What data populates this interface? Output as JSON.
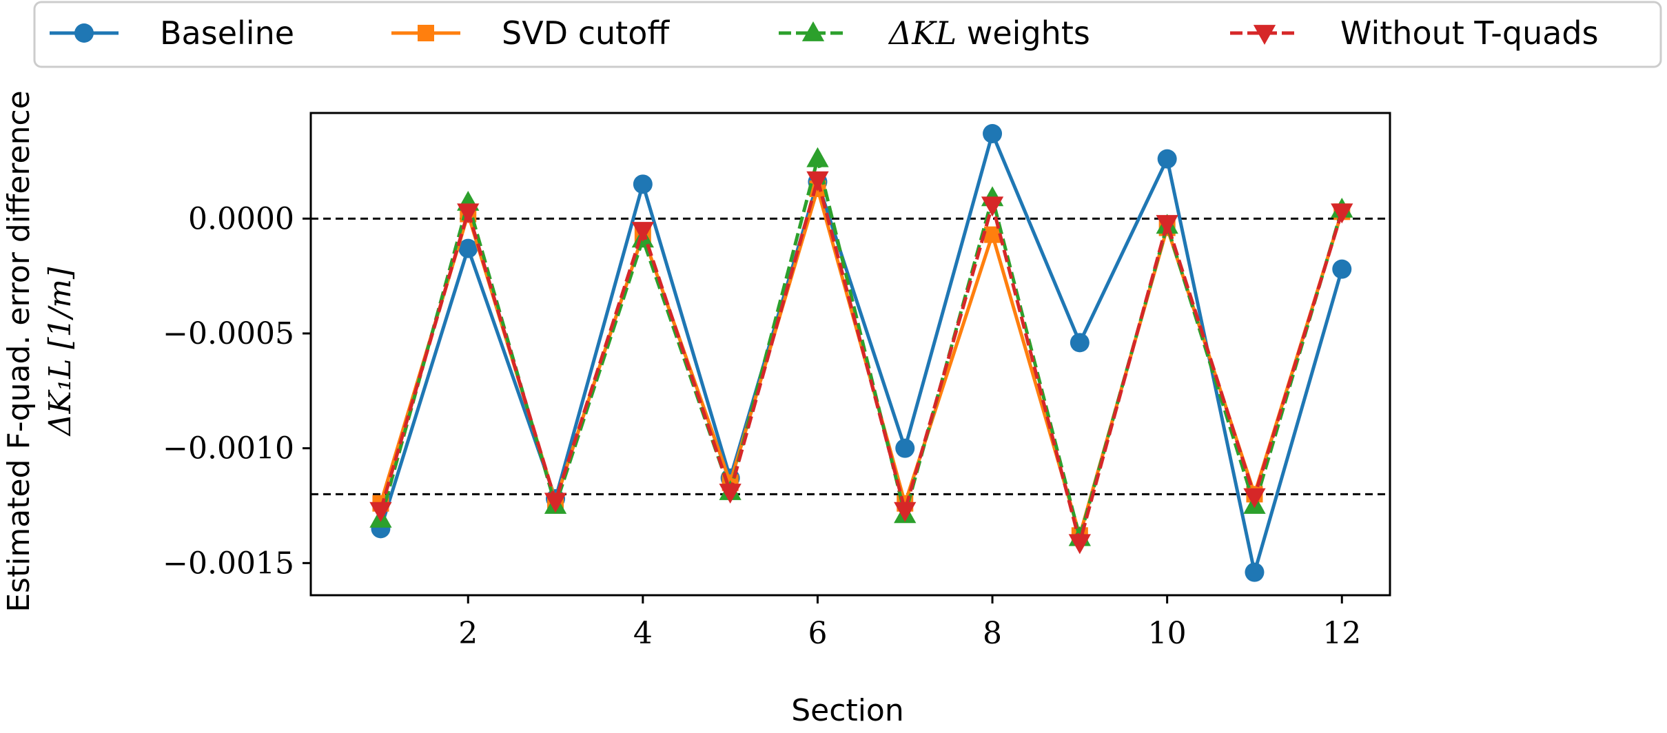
{
  "chart_data": {
    "type": "line",
    "xlabel": "Section",
    "ylabel_line1": "Estimated F-quad. error difference",
    "ylabel_line2": "ΔK₁L [1/m]",
    "xlim": [
      0.2,
      12.55
    ],
    "ylim": [
      -0.00164,
      0.00046
    ],
    "x_ticks": [
      2,
      4,
      6,
      8,
      10,
      12
    ],
    "x_tick_labels": [
      "2",
      "4",
      "6",
      "8",
      "10",
      "12"
    ],
    "y_ticks": [
      0.0,
      -0.0005,
      -0.001,
      -0.0015
    ],
    "y_tick_labels": [
      "0.0000",
      "−0.0005",
      "−0.0010",
      "−0.0015"
    ],
    "hlines": [
      0.0,
      -0.0012
    ],
    "x": [
      1,
      2,
      3,
      4,
      5,
      6,
      7,
      8,
      9,
      10,
      11,
      12
    ],
    "series": [
      {
        "name": "Baseline",
        "label": "Baseline",
        "color": "#1f77b4",
        "marker": "circle",
        "dashed": false,
        "values": [
          -0.00135,
          -0.00013,
          -0.00122,
          0.00015,
          -0.00113,
          0.00016,
          -0.001,
          0.00037,
          -0.00054,
          0.00026,
          -0.00154,
          -0.00022
        ]
      },
      {
        "name": "SVD cutoff",
        "label": "SVD cutoff",
        "color": "#ff7f0e",
        "marker": "square",
        "dashed": false,
        "values": [
          -0.00124,
          2e-05,
          -0.00123,
          -7e-05,
          -0.00115,
          0.00013,
          -0.00124,
          -7e-05,
          -0.00138,
          -4e-05,
          -0.0012,
          3e-05
        ]
      },
      {
        "name": "ΔKL weights",
        "label": "ΔKL weights",
        "label_math": "ΔKL",
        "label_text": "weights",
        "color": "#2ca02c",
        "marker": "triangle-up",
        "dashed": true,
        "values": [
          -0.00131,
          7e-05,
          -0.00125,
          -9e-05,
          -0.00119,
          0.00026,
          -0.00129,
          9e-05,
          -0.00139,
          -3e-05,
          -0.00125,
          4e-05
        ]
      },
      {
        "name": "Without T-quads",
        "label": "Without T-quads",
        "color": "#d62728",
        "marker": "triangle-down",
        "dashed": true,
        "values": [
          -0.00127,
          3e-05,
          -0.00123,
          -5e-05,
          -0.00119,
          0.00017,
          -0.00127,
          6e-05,
          -0.00141,
          -2e-05,
          -0.00121,
          3e-05
        ]
      }
    ]
  }
}
